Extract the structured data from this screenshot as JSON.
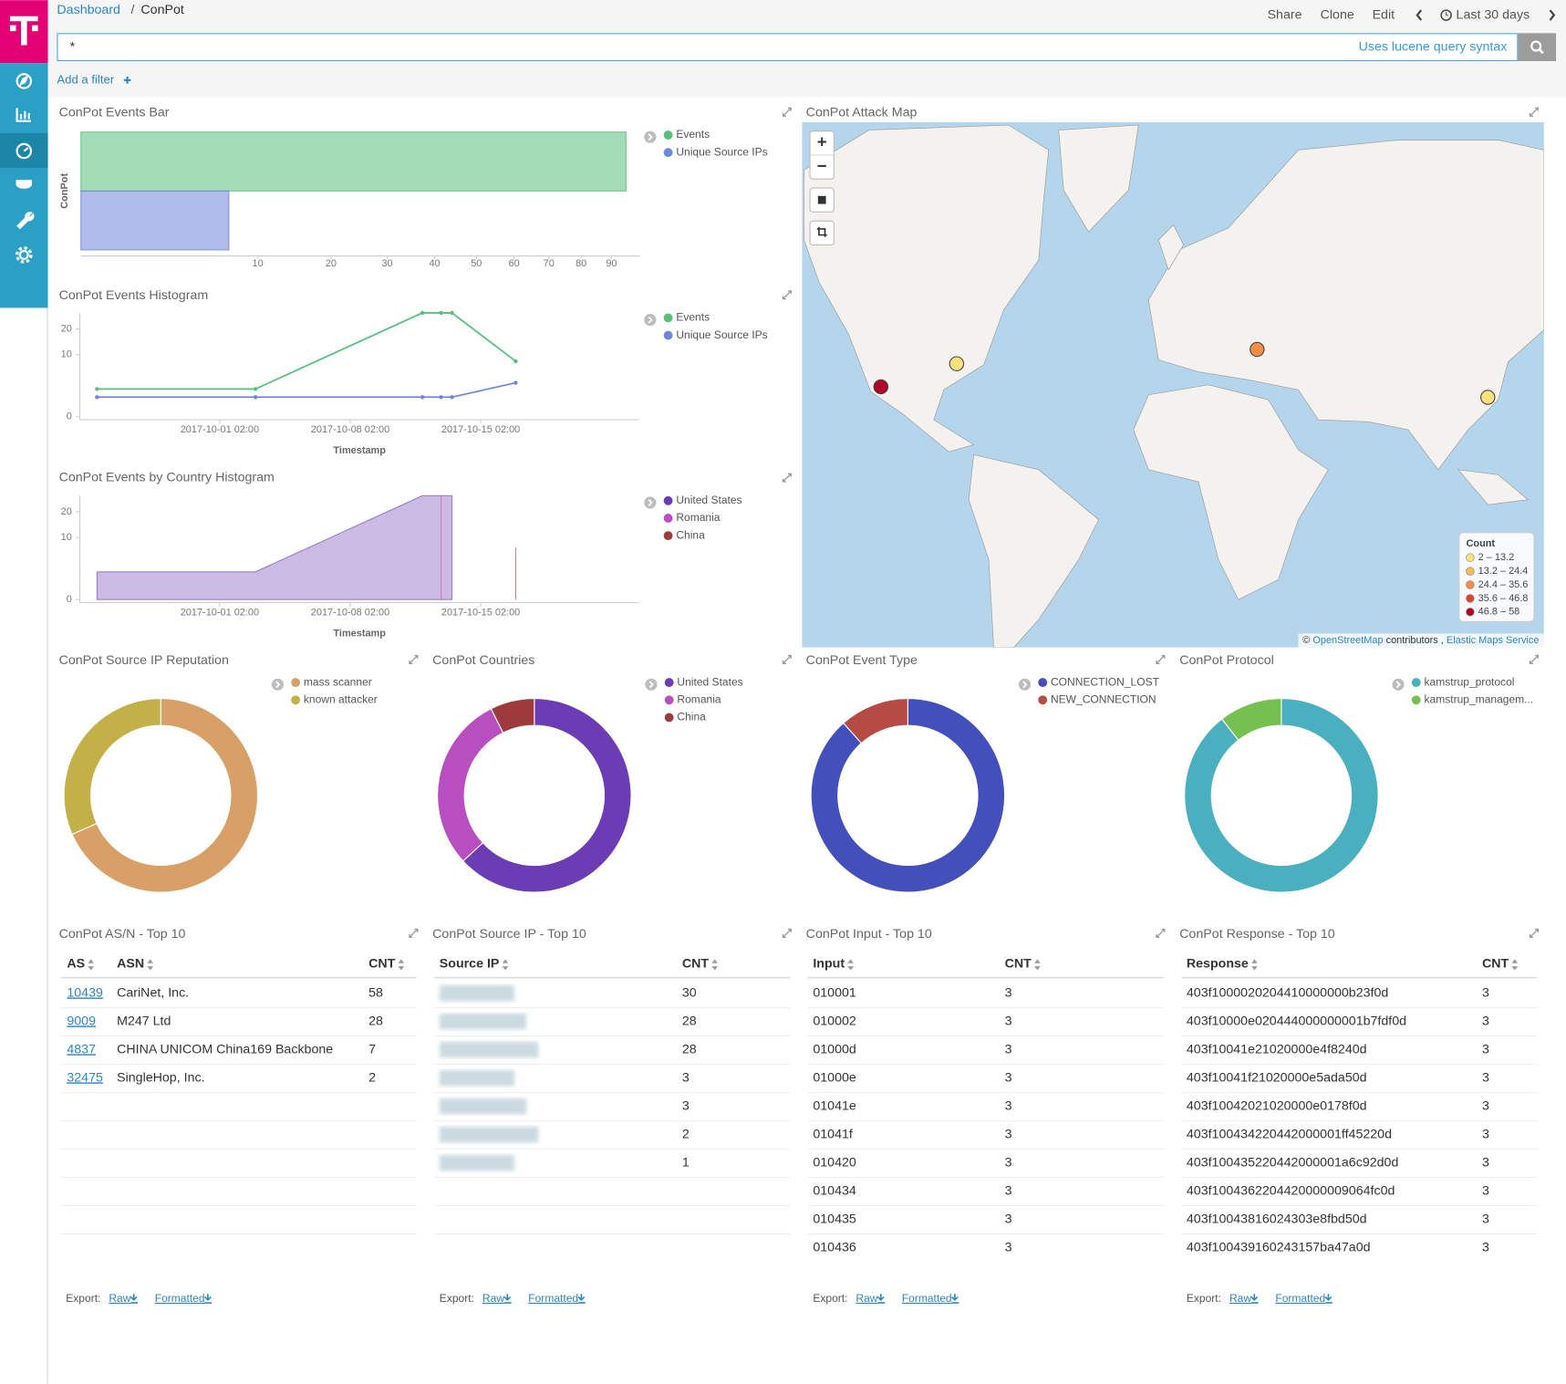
{
  "header": {
    "breadcrumb": [
      "Dashboard",
      "ConPot"
    ],
    "breadcrumb_separator": "/",
    "actions": [
      "Share",
      "Clone",
      "Edit"
    ],
    "time_range": "Last 30 days"
  },
  "search": {
    "query": "*",
    "hint": "Uses lucene query syntax"
  },
  "filter": {
    "add": "Add a filter"
  },
  "chart_data": [
    {
      "type": "bar",
      "orientation": "horizontal",
      "title": "ConPot Events Bar",
      "categories": [
        "ConPot"
      ],
      "scale": "sqrt",
      "series": [
        {
          "name": "Events",
          "color": "#57c17b",
          "values": [
            95
          ]
        },
        {
          "name": "Unique Source IPs",
          "color": "#6f87d8",
          "values": [
            7
          ]
        }
      ],
      "xlim": [
        0,
        100
      ],
      "xticks": [
        10,
        20,
        30,
        40,
        50,
        60,
        70,
        80,
        90
      ]
    },
    {
      "type": "line",
      "title": "ConPot Events Histogram",
      "scale": "sqrt",
      "x": [
        "2017-09-24 12:00",
        "2017-10-03 00:00",
        "2017-10-11 23:00",
        "2017-10-12 23:00",
        "2017-10-13 13:00",
        "2017-10-16 23:00"
      ],
      "series": [
        {
          "name": "Events",
          "color": "#57c17b",
          "values": [
            2,
            2,
            28,
            28,
            28,
            8
          ]
        },
        {
          "name": "Unique Source IPs",
          "color": "#6f87d8",
          "values": [
            1,
            1,
            1,
            1,
            1,
            3
          ]
        }
      ],
      "xlim": [
        "2017-09-23 14:00",
        "2017-10-23 14:00"
      ],
      "xticks": [
        "2017-10-01 02:00",
        "2017-10-08 02:00",
        "2017-10-15 02:00"
      ],
      "ylim": [
        0,
        28
      ],
      "yticks": [
        0,
        10,
        20
      ],
      "xlabel": "Timestamp"
    },
    {
      "type": "area",
      "title": "ConPot Events by Country Histogram",
      "scale": "sqrt",
      "x": [
        "2017-09-24 12:00",
        "2017-10-03 00:00",
        "2017-10-11 23:00",
        "2017-10-12 23:00",
        "2017-10-13 13:00",
        "2017-10-16 23:00"
      ],
      "series": [
        {
          "name": "United States",
          "color": "#6c3cb4",
          "values": [
            2,
            2,
            28,
            28,
            28,
            null
          ]
        },
        {
          "name": "Romania",
          "color": "#b94ec0",
          "values": [
            null,
            null,
            null,
            28,
            null,
            null
          ]
        },
        {
          "name": "China",
          "color": "#9d3a3a",
          "values": [
            null,
            null,
            null,
            null,
            null,
            7
          ]
        }
      ],
      "xlim": [
        "2017-09-23 14:00",
        "2017-10-23 14:00"
      ],
      "xticks": [
        "2017-10-01 02:00",
        "2017-10-08 02:00",
        "2017-10-15 02:00"
      ],
      "ylim": [
        0,
        28
      ],
      "yticks": [
        0,
        10,
        20
      ],
      "xlabel": "Timestamp"
    },
    {
      "type": "pie",
      "donut": true,
      "title": "ConPot Source IP Reputation",
      "categories": [
        "mass scanner",
        "known attacker"
      ],
      "values": [
        65,
        30
      ],
      "colors": [
        "#d8a066",
        "#c3b048"
      ]
    },
    {
      "type": "pie",
      "donut": true,
      "title": "ConPot Countries",
      "categories": [
        "United States",
        "Romania",
        "China"
      ],
      "values": [
        60,
        28,
        7
      ],
      "colors": [
        "#6c3cb4",
        "#b94ec0",
        "#9d3a3a"
      ]
    },
    {
      "type": "pie",
      "donut": true,
      "title": "ConPot Event Type",
      "categories": [
        "CONNECTION_LOST",
        "NEW_CONNECTION"
      ],
      "values": [
        84,
        11
      ],
      "colors": [
        "#434fba",
        "#b64b45"
      ]
    },
    {
      "type": "pie",
      "donut": true,
      "title": "ConPot Protocol",
      "categories": [
        "kamstrup_protocol",
        "kamstrup_managem..."
      ],
      "values": [
        85,
        10
      ],
      "colors": [
        "#4aafbf",
        "#74c151"
      ]
    }
  ],
  "map": {
    "title": "ConPot Attack Map",
    "controls": [
      "+",
      "−"
    ],
    "legend_title": "Count",
    "legend": [
      {
        "min": 2,
        "max": 13.2,
        "label": "2 – 13.2",
        "color": "#fde27d"
      },
      {
        "min": 13.2,
        "max": 24.4,
        "label": "13.2 – 24.4",
        "color": "#fcb85a"
      },
      {
        "min": 24.4,
        "max": 35.6,
        "label": "24.4 – 35.6",
        "color": "#f68d44"
      },
      {
        "min": 35.6,
        "max": 46.8,
        "label": "35.6 – 46.8",
        "color": "#e3402d"
      },
      {
        "min": 46.8,
        "max": 58,
        "label": "46.8 – 58",
        "color": "#b3002a"
      }
    ],
    "markers": [
      {
        "count": 2,
        "lat": 41,
        "lon": -89
      },
      {
        "count": 58,
        "lat": 34,
        "lon": -118
      },
      {
        "count": 28,
        "lat": 45,
        "lon": 26
      },
      {
        "count": 7,
        "lat": 30.6,
        "lon": 114.3
      }
    ],
    "attribution": {
      "prefix": "©",
      "links": [
        "OpenStreetMap",
        "Elastic Maps Service"
      ],
      "text": "contributors ,"
    }
  },
  "tables": [
    {
      "title": "ConPot AS/N - Top 10",
      "columns": [
        "AS",
        "ASN",
        "CNT"
      ],
      "link_column": 0,
      "rows": [
        [
          10439,
          "CariNet, Inc.",
          58
        ],
        [
          9009,
          "M247 Ltd",
          28
        ],
        [
          4837,
          "CHINA UNICOM China169 Backbone",
          7
        ],
        [
          32475,
          "SingleHop, Inc.",
          2
        ]
      ]
    },
    {
      "title": "ConPot Source IP - Top 10",
      "columns": [
        "Source IP",
        "CNT"
      ],
      "rows": [
        [
          null,
          30
        ],
        [
          null,
          28
        ],
        [
          null,
          28
        ],
        [
          null,
          3
        ],
        [
          null,
          3
        ],
        [
          null,
          2
        ],
        [
          null,
          1
        ]
      ]
    },
    {
      "title": "ConPot Input - Top 10",
      "columns": [
        "Input",
        "CNT"
      ],
      "rows": [
        [
          "010001",
          3
        ],
        [
          "010002",
          3
        ],
        [
          "01000d",
          3
        ],
        [
          "01000e",
          3
        ],
        [
          "01041e",
          3
        ],
        [
          "01041f",
          3
        ],
        [
          "010420",
          3
        ],
        [
          "010434",
          3
        ],
        [
          "010435",
          3
        ],
        [
          "010436",
          3
        ]
      ]
    },
    {
      "title": "ConPot Response - Top 10",
      "columns": [
        "Response",
        "CNT"
      ],
      "rows": [
        [
          "403f1000020204410000000b23f0d",
          3
        ],
        [
          "403f10000e020444000000001b7fdf0d",
          3
        ],
        [
          "403f10041e21020000e4f8240d",
          3
        ],
        [
          "403f10041f21020000e5ada50d",
          3
        ],
        [
          "403f10042021020000e0178f0d",
          3
        ],
        [
          "403f100434220442000001ff45220d",
          3
        ],
        [
          "403f100435220442000001a6c92d0d",
          3
        ],
        [
          "403f1004362204420000009064fc0d",
          3
        ],
        [
          "403f10043816024303e8fbd50d",
          3
        ],
        [
          "403f100439160243157ba47a0d",
          3
        ]
      ]
    }
  ],
  "export": {
    "label": "Export:",
    "raw": "Raw",
    "formatted": "Formatted"
  }
}
